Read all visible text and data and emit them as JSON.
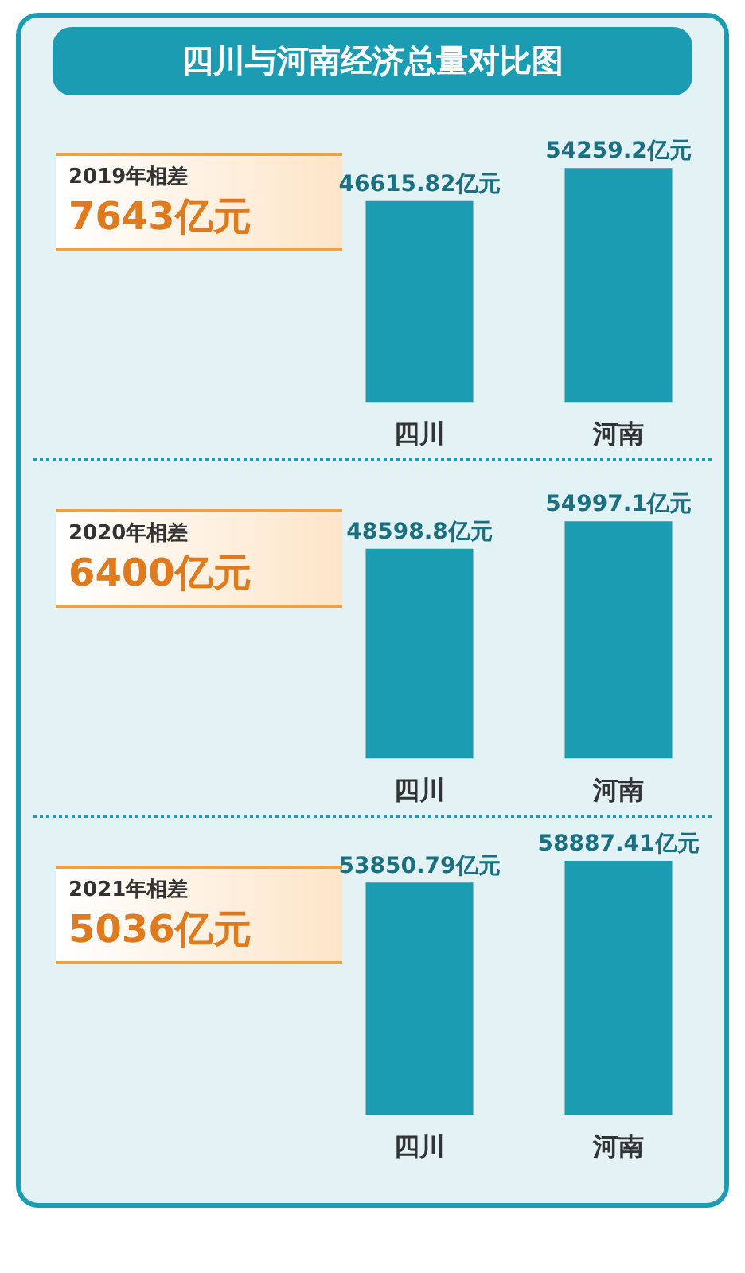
{
  "chart_data": [
    {
      "type": "bar",
      "title": "四川与河南经济总量对比图",
      "categories": [
        "四川",
        "河南"
      ],
      "values": [
        46615.82,
        54259.2
      ],
      "value_labels": [
        "46615.82亿元",
        "54259.2亿元"
      ],
      "color": "#1b9cb2",
      "annotations": [
        "2019年相差",
        "7643亿元"
      ]
    },
    {
      "type": "bar",
      "categories": [
        "四川",
        "河南"
      ],
      "values": [
        48598.8,
        54997.1
      ],
      "value_labels": [
        "48598.8亿元",
        "54997.1亿元"
      ],
      "color": "#1b9cb2",
      "annotations": [
        "2020年相差",
        "6400亿元"
      ]
    },
    {
      "type": "bar",
      "categories": [
        "四川",
        "河南"
      ],
      "values": [
        53850.79,
        58887.41
      ],
      "value_labels": [
        "53850.79亿元",
        "58887.41亿元"
      ],
      "color": "#1b9cb2",
      "annotations": [
        "2021年相差",
        "5036亿元"
      ]
    }
  ]
}
